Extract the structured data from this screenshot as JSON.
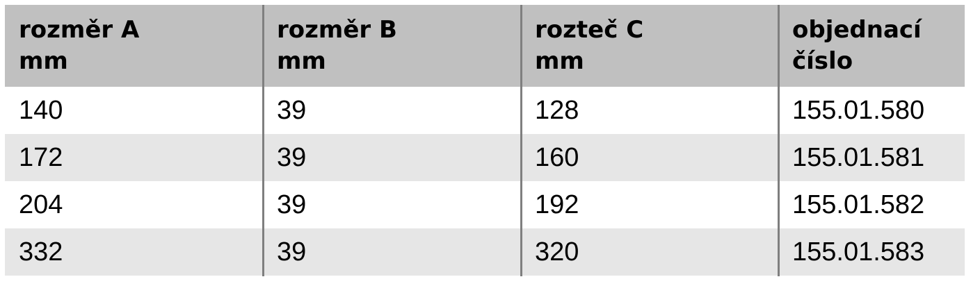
{
  "table": {
    "headers": [
      {
        "line1": "rozměr  A",
        "line2": "mm"
      },
      {
        "line1": "rozměr  B",
        "line2": "mm"
      },
      {
        "line1": "rozteč  C",
        "line2": "mm"
      },
      {
        "line1": "objednací",
        "line2": "číslo"
      }
    ],
    "rows": [
      [
        "140",
        "39",
        "128",
        "155.01.580"
      ],
      [
        "172",
        "39",
        "160",
        "155.01.581"
      ],
      [
        "204",
        "39",
        "192",
        "155.01.582"
      ],
      [
        "332",
        "39",
        "320",
        "155.01.583"
      ]
    ]
  },
  "colors": {
    "header_bg": "#c0c0c0",
    "alt_row_bg": "#e6e6e6",
    "divider": "#7f7f7f"
  }
}
